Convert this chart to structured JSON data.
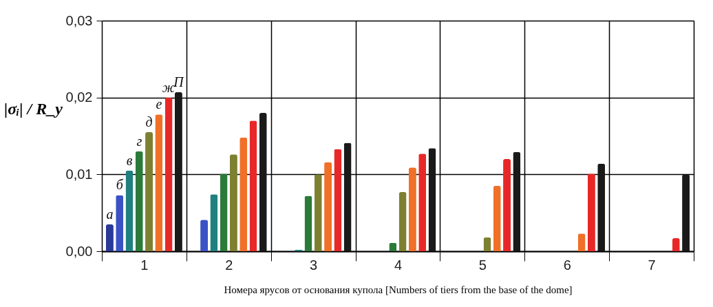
{
  "chart_data": {
    "type": "bar",
    "xlabel": "Номера ярусов от основания купола [Numbers of tiers from the base of the dome]",
    "ylabel": "|σᵢ| / R_y",
    "categories": [
      "1",
      "2",
      "3",
      "4",
      "5",
      "6",
      "7"
    ],
    "series": [
      {
        "name": "а",
        "color": "#2a3a9a",
        "values": [
          0.0035,
          null,
          null,
          null,
          null,
          null,
          null
        ]
      },
      {
        "name": "б",
        "color": "#3a52c4",
        "values": [
          0.0073,
          0.0041,
          null,
          null,
          null,
          null,
          null
        ]
      },
      {
        "name": "в",
        "color": "#1e8080",
        "values": [
          0.0105,
          0.0074,
          0.0002,
          null,
          null,
          null,
          null
        ]
      },
      {
        "name": "г",
        "color": "#2a7a3a",
        "values": [
          0.013,
          0.0101,
          0.0072,
          0.0011,
          null,
          null,
          null
        ]
      },
      {
        "name": "д",
        "color": "#7d8030",
        "values": [
          0.0155,
          0.0126,
          0.01,
          0.0077,
          0.0018,
          null,
          null
        ]
      },
      {
        "name": "е",
        "color": "#f07028",
        "values": [
          0.0178,
          0.0148,
          0.0116,
          0.0109,
          0.0085,
          0.0023,
          null
        ]
      },
      {
        "name": "ж",
        "color": "#e82828",
        "values": [
          0.02,
          0.017,
          0.0133,
          0.0127,
          0.012,
          0.0101,
          0.0017
        ]
      },
      {
        "name": "П",
        "color": "#1a1a1a",
        "values": [
          0.0207,
          0.018,
          0.0141,
          0.0134,
          0.0129,
          0.0114,
          0.01
        ]
      }
    ],
    "ylim": [
      0,
      0.03
    ],
    "yticks": [
      {
        "value": 0,
        "label": "0,00"
      },
      {
        "value": 0.01,
        "label": "0,01"
      },
      {
        "value": 0.02,
        "label": "0,02"
      },
      {
        "value": 0.03,
        "label": "0,03"
      }
    ],
    "grid": true,
    "legend": false
  }
}
